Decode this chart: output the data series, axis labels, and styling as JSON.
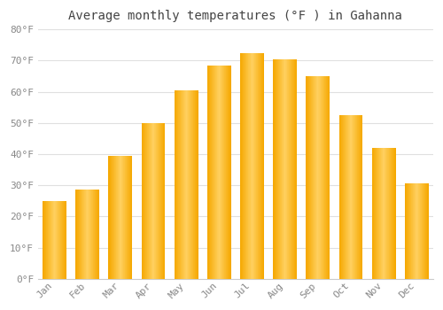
{
  "title": "Average monthly temperatures (°F ) in Gahanna",
  "months": [
    "Jan",
    "Feb",
    "Mar",
    "Apr",
    "May",
    "Jun",
    "Jul",
    "Aug",
    "Sep",
    "Oct",
    "Nov",
    "Dec"
  ],
  "values": [
    25,
    28.5,
    39.5,
    50,
    60.5,
    68.5,
    72.5,
    70.5,
    65,
    52.5,
    42,
    30.5
  ],
  "bar_color_center": "#FFD060",
  "bar_color_edge": "#F5A800",
  "ylim": [
    0,
    80
  ],
  "yticks": [
    0,
    10,
    20,
    30,
    40,
    50,
    60,
    70,
    80
  ],
  "ytick_labels": [
    "0°F",
    "10°F",
    "20°F",
    "30°F",
    "40°F",
    "50°F",
    "60°F",
    "70°F",
    "80°F"
  ],
  "background_color": "#ffffff",
  "plot_bg_color": "#ffffff",
  "grid_color": "#e0e0e0",
  "title_fontsize": 10,
  "tick_fontsize": 8,
  "tick_color": "#888888",
  "font_family": "monospace"
}
